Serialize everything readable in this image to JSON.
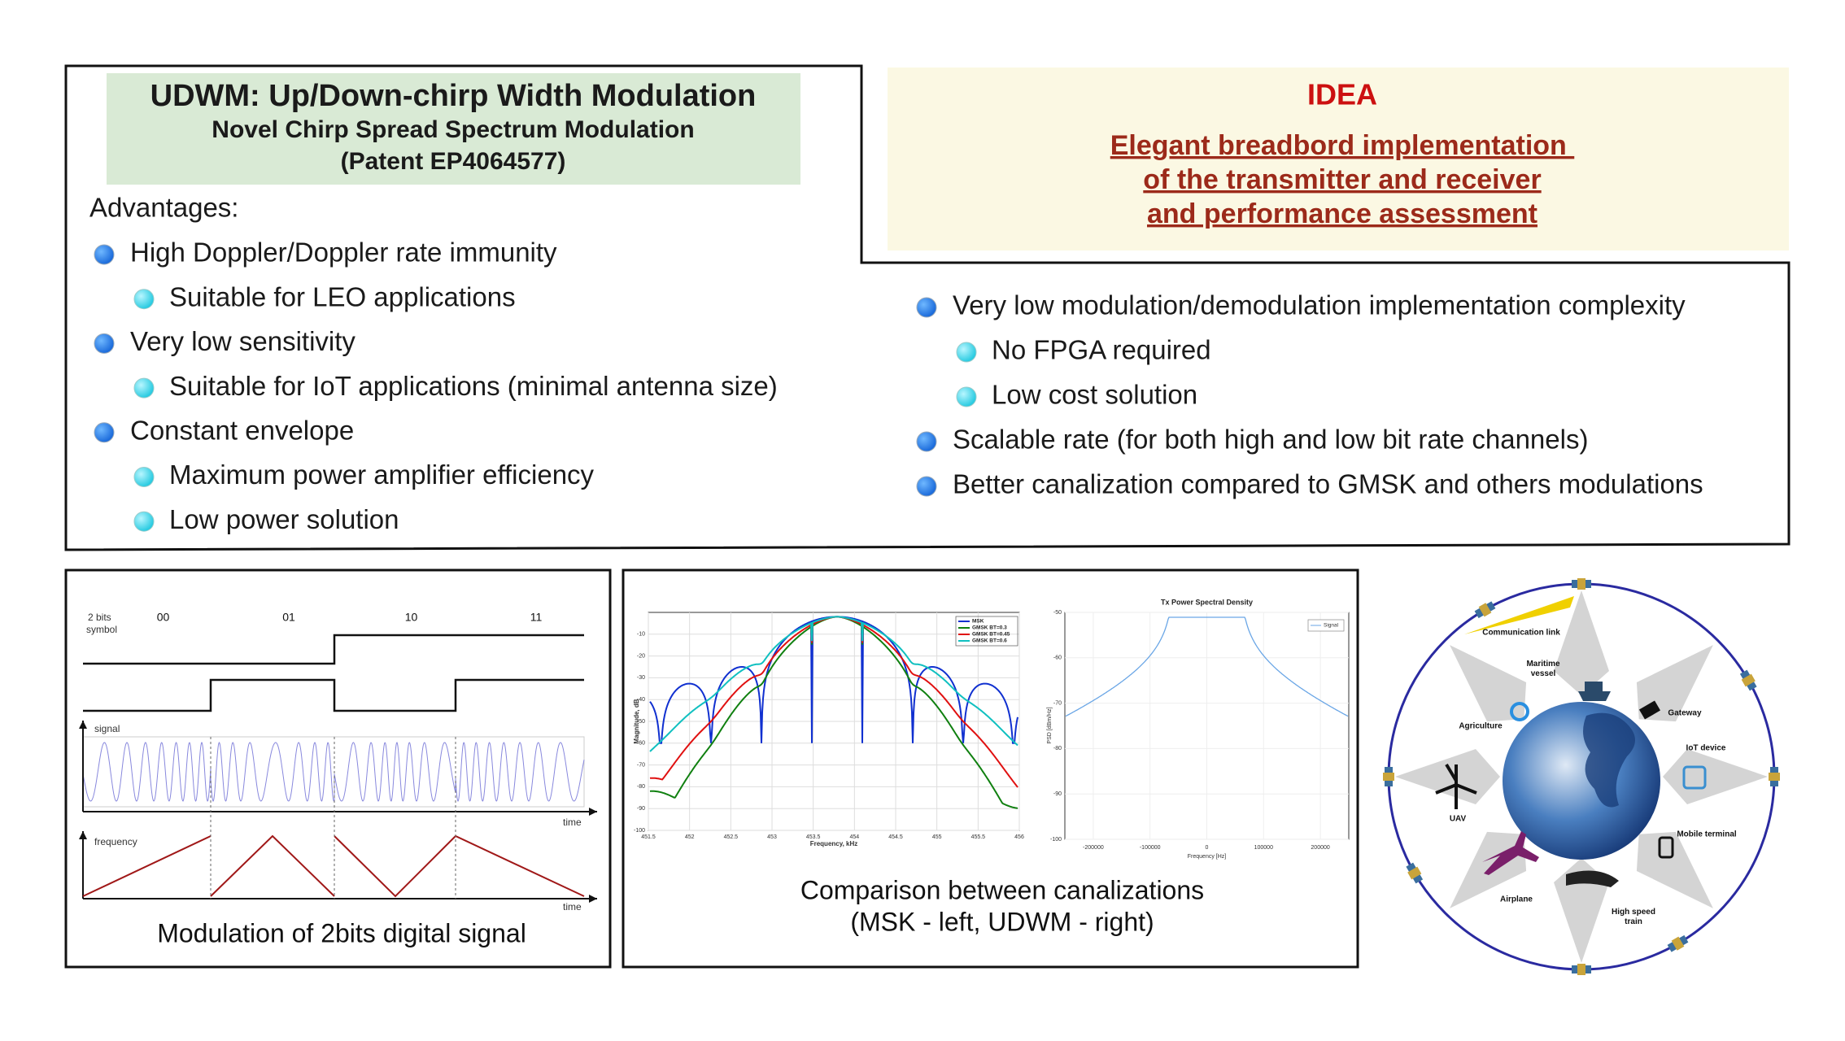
{
  "left_panel": {
    "title": "UDWM: Up/Down-chirp Width Modulation",
    "subtitle_lines": [
      "Novel Chirp Spread Spectrum Modulation",
      "(Patent EP4064577)"
    ],
    "heading": "Advantages:",
    "items": [
      {
        "text": "High Doppler/Doppler rate immunity",
        "sub": [
          "Suitable for LEO applications"
        ]
      },
      {
        "text": "Very low sensitivity",
        "sub": [
          "Suitable for IoT applications (minimal antenna size)"
        ]
      },
      {
        "text": "Constant envelope",
        "sub": [
          "Maximum power amplifier efficiency",
          "Low power solution"
        ]
      }
    ]
  },
  "idea_panel": {
    "title": "IDEA",
    "lines": [
      "Elegant breadbord implementation ",
      "of the transmitter and receiver",
      "and performance assessment"
    ]
  },
  "right_panel": {
    "items": [
      {
        "text": "Very low modulation/demodulation implementation complexity",
        "sub": [
          "No FPGA required",
          "Low cost solution"
        ]
      },
      {
        "text": "Scalable rate (for both high and low bit rate channels)",
        "sub": []
      },
      {
        "text": "Better canalization compared to GMSK and others modulations",
        "sub": []
      }
    ]
  },
  "modulation_figure": {
    "caption": "Modulation of 2bits digital signal",
    "symbol_label": [
      "2 bits",
      "symbol"
    ],
    "symbols": [
      "00",
      "01",
      "10",
      "11"
    ],
    "signal_label": "signal",
    "frequency_label": "frequency",
    "time_label": "time"
  },
  "canalization_figure": {
    "caption_lines": [
      "Comparison between canalizations",
      "(MSK - left, UDWM - right)"
    ],
    "msk_plot": {
      "y_label": "Magnitude, dB",
      "x_label": "Frequency, kHz",
      "yticks": [
        "-10",
        "-20",
        "-30",
        "-40",
        "-50",
        "-60",
        "-70",
        "-80",
        "-90",
        "-100"
      ],
      "xticks": [
        "451.5",
        "452",
        "452.5",
        "453",
        "453.5",
        "454",
        "454.5",
        "455",
        "455.5",
        "456"
      ],
      "legend": [
        {
          "name": "MSK",
          "color": "#1030d0"
        },
        {
          "name": "GMSK BT=0.3",
          "color": "#108010"
        },
        {
          "name": "GMSK BT=0.45",
          "color": "#e01010"
        },
        {
          "name": "GMSK BT=0.6",
          "color": "#10c0c0"
        }
      ]
    },
    "psd_plot": {
      "title": "Tx Power Spectral Density",
      "legend": "Signal",
      "y_label": "PSD [dBm/Hz]",
      "x_label": "Frequency [Hz]",
      "yticks": [
        "-50",
        "-60",
        "-70",
        "-80",
        "-90",
        "-100"
      ],
      "xticks": [
        "-200000",
        "-100000",
        "0",
        "100000",
        "200000"
      ]
    }
  },
  "applications_diagram": {
    "labels": [
      "Communication link",
      "Maritime vessel",
      "Agriculture",
      "Gateway",
      "IoT device",
      "UAV",
      "Mobile terminal",
      "Airplane",
      "High speed train"
    ]
  }
}
